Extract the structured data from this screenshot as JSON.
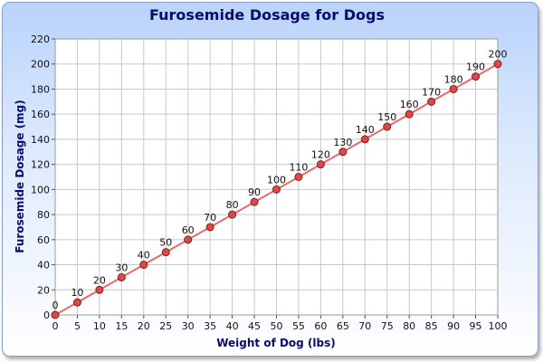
{
  "chart_data": {
    "type": "line",
    "title": "Furosemide Dosage for Dogs",
    "xlabel": "Weight of Dog (lbs)",
    "ylabel": "Furosemide Dosage (mg)",
    "x": [
      0,
      5,
      10,
      15,
      20,
      25,
      30,
      35,
      40,
      45,
      50,
      55,
      60,
      65,
      70,
      75,
      80,
      85,
      90,
      95,
      100
    ],
    "series": [
      {
        "values": [
          0,
          10,
          20,
          30,
          40,
          50,
          60,
          70,
          80,
          90,
          100,
          110,
          120,
          130,
          140,
          150,
          160,
          170,
          180,
          190,
          200
        ]
      }
    ],
    "xlim": [
      0,
      100
    ],
    "ylim": [
      0,
      220
    ],
    "xticks": [
      0,
      5,
      10,
      15,
      20,
      25,
      30,
      35,
      40,
      45,
      50,
      55,
      60,
      65,
      70,
      75,
      80,
      85,
      90,
      95,
      100
    ],
    "yticks": [
      0,
      20,
      40,
      60,
      80,
      100,
      120,
      140,
      160,
      180,
      200,
      220
    ],
    "grid": true,
    "legend": "none",
    "colors": {
      "line": "#e86a6a",
      "marker": "#e04848",
      "marker_stroke": "#7a2020",
      "grid": "#c8c8c8",
      "title": "#0b0b6e"
    }
  }
}
